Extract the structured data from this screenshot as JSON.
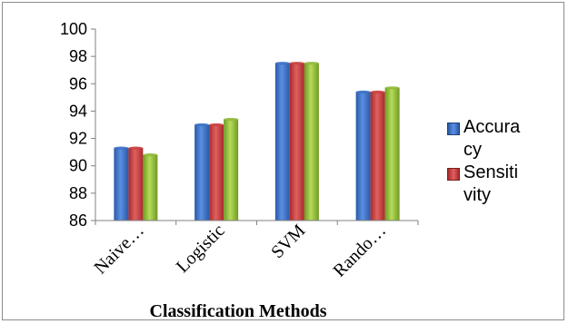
{
  "chart_data": {
    "type": "bar",
    "categories": [
      "Naive…",
      "Logistic",
      "SVM",
      "Rando…"
    ],
    "series": [
      {
        "name": "Accuracy",
        "color": "#3a6fc4",
        "values": [
          91.3,
          93.0,
          97.5,
          95.4
        ]
      },
      {
        "name": "Sensitivity",
        "color": "#c94040",
        "values": [
          91.3,
          93.0,
          97.5,
          95.4
        ]
      },
      {
        "name": "",
        "color": "#8fb83a",
        "values": [
          90.8,
          93.4,
          97.5,
          95.7
        ]
      }
    ],
    "yticks": [
      "86",
      "88",
      "90",
      "92",
      "94",
      "96",
      "98",
      "100"
    ],
    "ylim": [
      86,
      100
    ],
    "xlabel": "Classification Methods",
    "ylabel": "",
    "title": "",
    "legend_position": "right",
    "grid": false
  },
  "legend": {
    "items": [
      {
        "label": "Accuracy",
        "color": "#3a6fc4"
      },
      {
        "label": "Sensitivity",
        "color": "#c94040"
      }
    ]
  }
}
